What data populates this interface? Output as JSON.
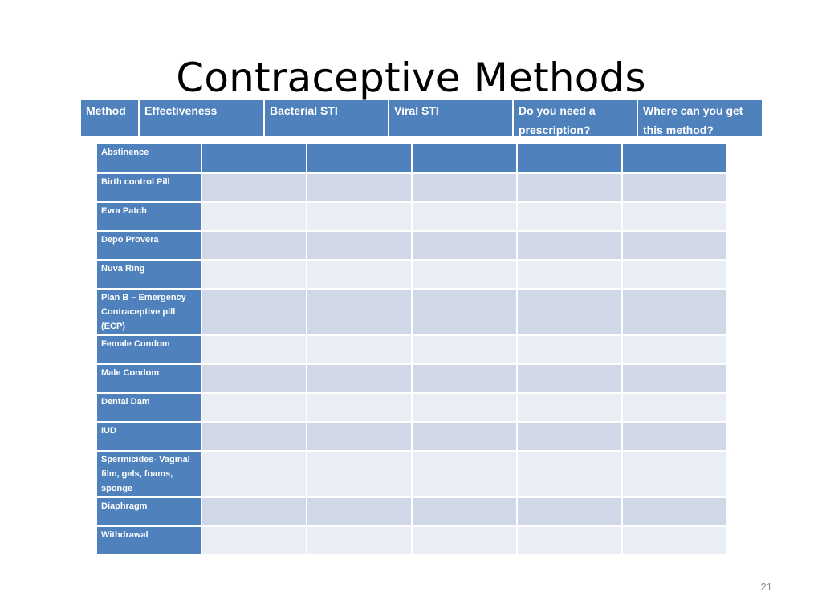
{
  "title": "Contraceptive Methods",
  "header": {
    "columns": [
      "Method",
      "Effectiveness",
      "Bacterial STI",
      "Viral STI",
      "Do you need a prescription?",
      "Where can you get this method?"
    ]
  },
  "rows": [
    "Abstinence",
    "Birth control Pill",
    "Evra Patch",
    "Depo Provera",
    "Nuva Ring",
    "Plan B – Emergency Contraceptive pill (ECP)",
    "Female Condom",
    "Male Condom",
    "Dental Dam",
    "IUD",
    "Spermicides- Vaginal film, gels, foams, sponge",
    "Diaphragm",
    "Withdrawal"
  ],
  "page_number": "21",
  "colors": {
    "accent": "#4f81bd",
    "band_dark": "#d0d8e8",
    "band_light": "#e9edf4"
  }
}
